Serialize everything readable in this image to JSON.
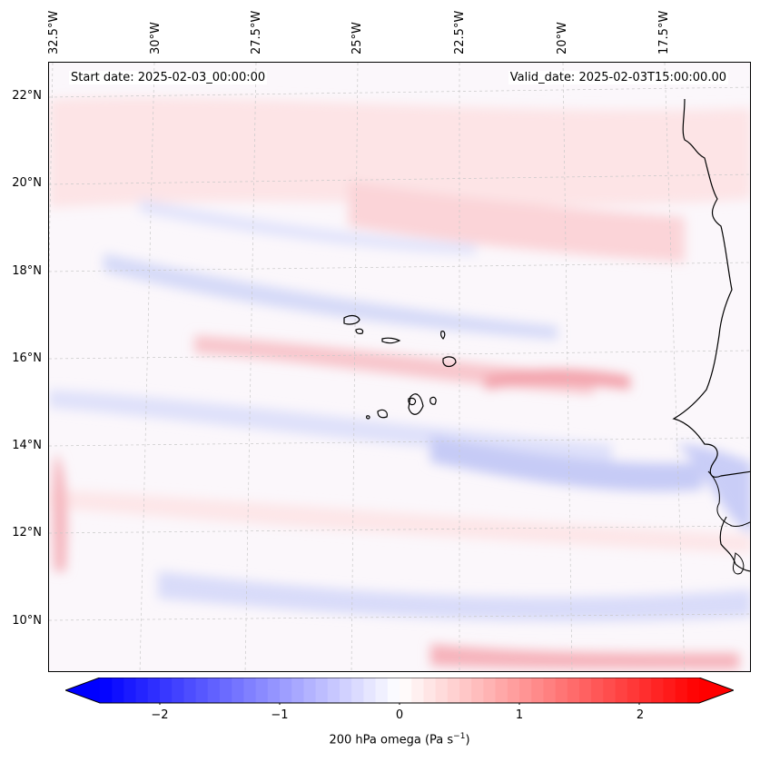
{
  "map": {
    "longitude_labels": [
      "32.5°W",
      "30°W",
      "27.5°W",
      "25°W",
      "22.5°W",
      "20°W",
      "17.5°W"
    ],
    "latitude_labels": [
      "22°N",
      "20°N",
      "18°N",
      "16°N",
      "14°N",
      "12°N",
      "10°N"
    ],
    "start_date_label": "Start date: 2025-02-03_00:00:00",
    "valid_date_label": "Valid_date: 2025-02-03T15:00:00.00",
    "islands": "Cape Verde",
    "field": "200 hPa omega"
  },
  "colorbar": {
    "title_prefix": "200 hPa omega (Pa s",
    "title_exp": "−1",
    "title_suffix": ")",
    "tick_labels": [
      "−2",
      "−1",
      "0",
      "1",
      "2"
    ],
    "tick_values": [
      -2,
      -1,
      0,
      1,
      2
    ],
    "range": [
      -2.5,
      2.5
    ],
    "colormap": "bwr",
    "low_color": "#0000ff",
    "mid_color": "#ffffff",
    "high_color": "#ff0000"
  }
}
